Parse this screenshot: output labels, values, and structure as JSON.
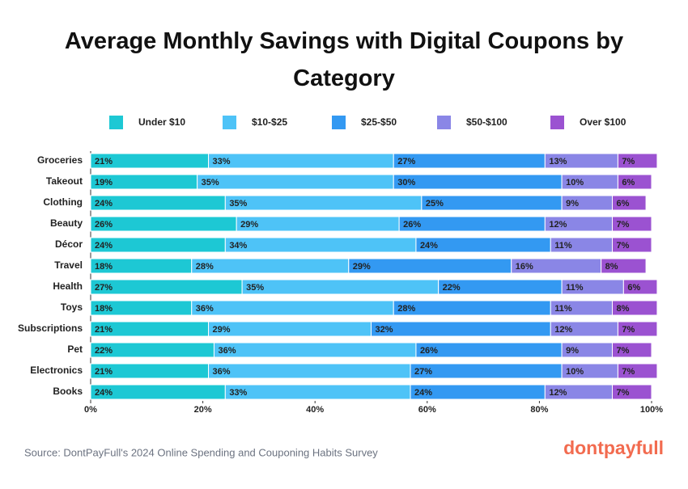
{
  "chart_data": {
    "type": "stacked-bar",
    "orientation": "horizontal",
    "title": "Average Monthly Savings with Digital Coupons by Category",
    "categories": [
      "Groceries",
      "Takeout",
      "Clothing",
      "Beauty",
      "Décor",
      "Travel",
      "Health",
      "Toys",
      "Subscriptions",
      "Pet",
      "Electronics",
      "Books"
    ],
    "series": [
      {
        "name": "Under $10",
        "color": "#1dc8d4",
        "values": [
          21,
          19,
          24,
          26,
          24,
          18,
          27,
          18,
          21,
          22,
          21,
          24
        ],
        "value_labels": [
          "21%",
          "19%",
          "24%",
          "26%",
          "24%",
          "18%",
          "27%",
          "18%",
          "21%",
          "22%",
          "21%",
          "24%"
        ]
      },
      {
        "name": "$10-$25",
        "color": "#4ec3f7",
        "values": [
          33,
          35,
          35,
          29,
          34,
          28,
          35,
          36,
          29,
          36,
          36,
          33
        ],
        "value_labels": [
          "33%",
          "35%",
          "35%",
          "29%",
          "34%",
          "28%",
          "35%",
          "36%",
          "29%",
          "36%",
          "36%",
          "33%"
        ]
      },
      {
        "name": "$25-$50",
        "color": "#3399f2",
        "values": [
          27,
          30,
          25,
          26,
          24,
          29,
          22,
          28,
          32,
          26,
          27,
          24
        ],
        "value_labels": [
          "27%",
          "30%",
          "25%",
          "26%",
          "24%",
          "29%",
          "22%",
          "28%",
          "32%",
          "26%",
          "27%",
          "24%"
        ]
      },
      {
        "name": "$50-$100",
        "color": "#8a86e6",
        "values": [
          13,
          10,
          9,
          12,
          11,
          16,
          11,
          11,
          12,
          9,
          10,
          12
        ],
        "value_labels": [
          "13%",
          "10%",
          "9%",
          "12%",
          "11%",
          "16%",
          "11%",
          "11%",
          "12%",
          "9%",
          "10%",
          "12%"
        ]
      },
      {
        "name": "Over $100",
        "color": "#9b52d1",
        "values": [
          7,
          6,
          6,
          7,
          7,
          8,
          6,
          8,
          7,
          7,
          7,
          7
        ],
        "value_labels": [
          "7%",
          "6%",
          "6%",
          "7%",
          "7%",
          "8%",
          "6%",
          "8%",
          "7%",
          "7%",
          "7%",
          "7%"
        ]
      }
    ],
    "xlim": [
      0,
      100
    ],
    "xticks": [
      {
        "value": 0,
        "label": "0%"
      },
      {
        "value": 20,
        "label": "20%"
      },
      {
        "value": 40,
        "label": "40%"
      },
      {
        "value": 60,
        "label": "60%"
      },
      {
        "value": 80,
        "label": "80%"
      },
      {
        "value": 100,
        "label": "100%"
      }
    ],
    "legend": "top",
    "source": "Source: DontPayFull's 2024 Online Spending and Couponing Habits Survey",
    "logo": "dontpayfull"
  }
}
